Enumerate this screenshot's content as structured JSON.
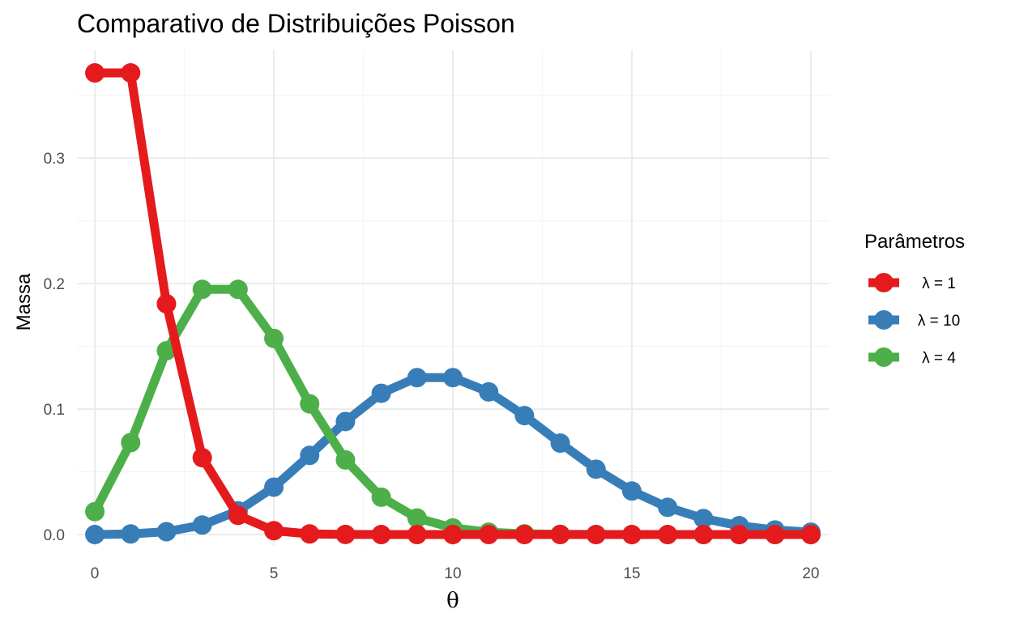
{
  "chart_data": {
    "type": "line",
    "title": "Comparativo de Distribuições Poisson",
    "xlabel": "θ",
    "ylabel": "Massa",
    "x": [
      0,
      1,
      2,
      3,
      4,
      5,
      6,
      7,
      8,
      9,
      10,
      11,
      12,
      13,
      14,
      15,
      16,
      17,
      18,
      19,
      20
    ],
    "xlim": [
      -0.5,
      20.5
    ],
    "ylim": [
      -0.009,
      0.386
    ],
    "x_ticks": [
      0,
      5,
      10,
      15,
      20
    ],
    "y_ticks": [
      0.0,
      0.1,
      0.2,
      0.3
    ],
    "x_tick_labels": [
      "0",
      "5",
      "10",
      "15",
      "20"
    ],
    "y_tick_labels": [
      "0.0",
      "0.1",
      "0.2",
      "0.3"
    ],
    "grid": true,
    "legend": {
      "title": "Parâmetros",
      "position": "right"
    },
    "series": [
      {
        "name": "λ = 1",
        "color": "#e41a1c",
        "values": [
          0.3679,
          0.3679,
          0.1839,
          0.0613,
          0.0153,
          0.0031,
          0.0005,
          0.0001,
          0.0,
          0.0,
          0.0,
          0.0,
          0.0,
          0.0,
          0.0,
          0.0,
          0.0,
          0.0,
          0.0,
          0.0,
          0.0
        ]
      },
      {
        "name": "λ = 10",
        "color": "#377eb8",
        "values": [
          0.0,
          0.0005,
          0.0023,
          0.0076,
          0.0189,
          0.0378,
          0.0631,
          0.0901,
          0.1126,
          0.1251,
          0.1251,
          0.1137,
          0.0948,
          0.0729,
          0.0521,
          0.0347,
          0.0217,
          0.0128,
          0.0071,
          0.0037,
          0.0019
        ]
      },
      {
        "name": "λ = 4",
        "color": "#4daf4a",
        "values": [
          0.0183,
          0.0733,
          0.1465,
          0.1954,
          0.1954,
          0.1563,
          0.1042,
          0.0595,
          0.0298,
          0.0132,
          0.0053,
          0.0019,
          0.0006,
          0.0002,
          0.0001,
          0.0,
          0.0,
          0.0,
          0.0,
          0.0,
          0.0
        ]
      }
    ],
    "draw_order": [
      1,
      2,
      0
    ]
  }
}
